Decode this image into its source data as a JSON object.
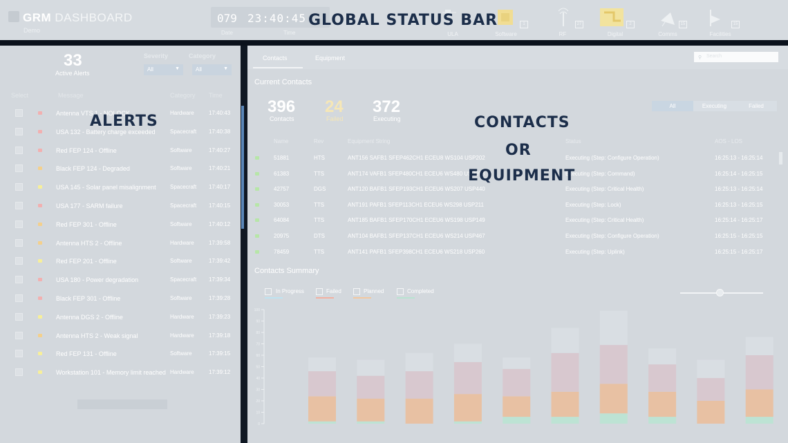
{
  "overlays": {
    "status_bar": "GLOBAL STATUS BAR",
    "alerts": "ALERTS",
    "contacts_1": "CONTACTS",
    "contacts_2": "OR",
    "contacts_3": "EQUIPMENT"
  },
  "statusbar": {
    "title_bold": "GRM",
    "title_rest": "DASHBOARD",
    "subtitle": "Demo",
    "day": "079",
    "time": "23:40:45",
    "date_label": "Date",
    "time_label": "Time",
    "indicators": [
      {
        "label": "ULA",
        "icon": "satellite-icon",
        "badge": ""
      },
      {
        "label": "Software",
        "icon": "chip-icon",
        "badge": "1"
      },
      {
        "label": "RF",
        "icon": "antenna-icon",
        "badge": "27"
      },
      {
        "label": "Digital",
        "icon": "circuit-icon",
        "badge": "2"
      },
      {
        "label": "Comms",
        "icon": "dish-icon",
        "badge": "15"
      },
      {
        "label": "Facilities",
        "icon": "flag-icon",
        "badge": "15"
      }
    ]
  },
  "alerts": {
    "count": "33",
    "count_label": "Active Alerts",
    "severity_label": "Severity",
    "category_label": "Category",
    "severity_value": "All",
    "category_value": "All",
    "columns": {
      "select": "Select",
      "message": "Message",
      "category": "Category",
      "time": "Time"
    },
    "rows": [
      {
        "message": "Antenna VTS 1 - NOLOCK",
        "category": "Hardware",
        "time": "17:40:43",
        "severity": "critical"
      },
      {
        "message": "USA 132 - Battery charge exceeded",
        "category": "Spacecraft",
        "time": "17:40:38",
        "severity": "critical"
      },
      {
        "message": "Red FEP 124 - Offline",
        "category": "Software",
        "time": "17:40:27",
        "severity": "critical"
      },
      {
        "message": "Black FEP 124 - Degraded",
        "category": "Software",
        "time": "17:40:21",
        "severity": "serious"
      },
      {
        "message": "USA 145 - Solar panel misalignment",
        "category": "Spacecraft",
        "time": "17:40:17",
        "severity": "caution"
      },
      {
        "message": "USA 177 - SARM failure",
        "category": "Spacecraft",
        "time": "17:40:15",
        "severity": "critical"
      },
      {
        "message": "Red FEP 301 - Offline",
        "category": "Software",
        "time": "17:40:12",
        "severity": "serious"
      },
      {
        "message": "Antenna HTS 2 - Offline",
        "category": "Hardware",
        "time": "17:39:58",
        "severity": "serious"
      },
      {
        "message": "Red FEP 201 - Offline",
        "category": "Software",
        "time": "17:39:42",
        "severity": "caution"
      },
      {
        "message": "USA 180 - Power degradation",
        "category": "Spacecraft",
        "time": "17:39:34",
        "severity": "critical"
      },
      {
        "message": "Black FEP 301 - Offline",
        "category": "Software",
        "time": "17:39:28",
        "severity": "critical"
      },
      {
        "message": "Antenna DGS 2 - Offline",
        "category": "Hardware",
        "time": "17:39:23",
        "severity": "caution"
      },
      {
        "message": "Antenna HTS 2 - Weak signal",
        "category": "Hardware",
        "time": "17:39:18",
        "severity": "serious"
      },
      {
        "message": "Red FEP 131 - Offline",
        "category": "Software",
        "time": "17:39:15",
        "severity": "caution"
      },
      {
        "message": "Workstation 101 - Memory limit reached",
        "category": "Hardware",
        "time": "17:39:12",
        "severity": "caution"
      }
    ],
    "severity_colors": {
      "critical": "#f2b0b0",
      "serious": "#f4d08c",
      "caution": "#f7ef9a"
    }
  },
  "main": {
    "tabs": [
      "Contacts",
      "Equipment"
    ],
    "search_placeholder": "Search",
    "current_contacts": "Current Contacts",
    "kpis": [
      {
        "value": "396",
        "label": "Contacts",
        "color": "#ffffff"
      },
      {
        "value": "24",
        "label": "Failed",
        "color": "#f6e7b6"
      },
      {
        "value": "372",
        "label": "Executing",
        "color": "#ffffff"
      }
    ],
    "filters": [
      "All",
      "Executing",
      "Failed"
    ],
    "columns": [
      "Name",
      "Rev",
      "Equipment String",
      "Status",
      "AOS - LOS"
    ],
    "rows": [
      {
        "name": "51881",
        "rev": "HTS",
        "eq": "ANT156 SAFB1 SFEP462CH1 ECEU8 WS104 USP202",
        "status": "Executing (Step: Configure Operation)",
        "aos": "16:25:13 - 16:25:14"
      },
      {
        "name": "61383",
        "rev": "TTS",
        "eq": "ANT174 VAFB1 SFEP480CH1 ECEU6 WS480 USP268",
        "status": "Executing (Step: Command)",
        "aos": "16:25:14 - 16:25:15"
      },
      {
        "name": "42757",
        "rev": "DGS",
        "eq": "ANT120 BAFB1 SFEP193CH1 ECEU6 WS207 USP440",
        "status": "Executing (Step: Critical Health)",
        "aos": "16:25:13 - 16:25:14"
      },
      {
        "name": "30053",
        "rev": "TTS",
        "eq": "ANT191 PAFB1 SFEP113CH1 ECEU6 WS298 USP211",
        "status": "Executing (Step: Lock)",
        "aos": "16:25:13 - 16:25:15"
      },
      {
        "name": "64084",
        "rev": "TTS",
        "eq": "ANT185 BAFB1 SFEP170CH1 ECEU6 WS198 USP149",
        "status": "Executing (Step: Critical Health)",
        "aos": "16:25:14 - 16:25:17"
      },
      {
        "name": "20975",
        "rev": "DTS",
        "eq": "ANT104 BAFB1 SFEP137CH1 ECEU6 WS214 USP467",
        "status": "Executing (Step: Configure Operation)",
        "aos": "16:25:15 - 16:25:15"
      },
      {
        "name": "78459",
        "rev": "TTS",
        "eq": "ANT141 PAFB1 SFEP398CH1 ECEU6 WS218 USP260",
        "status": "Executing (Step: Uplink)",
        "aos": "16:25:15 - 16:25:17"
      }
    ],
    "summary_title": "Contacts Summary",
    "legend": [
      {
        "label": "In Progress",
        "color": "#bde3f1"
      },
      {
        "label": "Failed",
        "color": "#f3b0a0"
      },
      {
        "label": "Planned",
        "color": "#f3c79f"
      },
      {
        "label": "Completed",
        "color": "#b8e3d1"
      }
    ]
  },
  "chart_data": {
    "type": "bar",
    "stacked": true,
    "series": [
      {
        "name": "Completed",
        "color": "#bde3d4",
        "values": [
          2,
          2,
          0,
          2,
          6,
          6,
          9,
          6,
          0,
          6
        ]
      },
      {
        "name": "Planned",
        "color": "#e8c1a3",
        "values": [
          22,
          20,
          22,
          24,
          18,
          22,
          26,
          22,
          20,
          24
        ]
      },
      {
        "name": "Failed",
        "color": "#d8c8cf",
        "values": [
          22,
          20,
          24,
          28,
          24,
          34,
          34,
          24,
          20,
          30
        ]
      },
      {
        "name": "In Progress",
        "color": "#d9dee3",
        "values": [
          12,
          14,
          16,
          16,
          10,
          22,
          30,
          14,
          16,
          16
        ]
      }
    ],
    "ylim": [
      0,
      100
    ],
    "yticks": [
      0,
      10,
      20,
      30,
      40,
      50,
      60,
      70,
      80,
      90,
      100
    ]
  }
}
